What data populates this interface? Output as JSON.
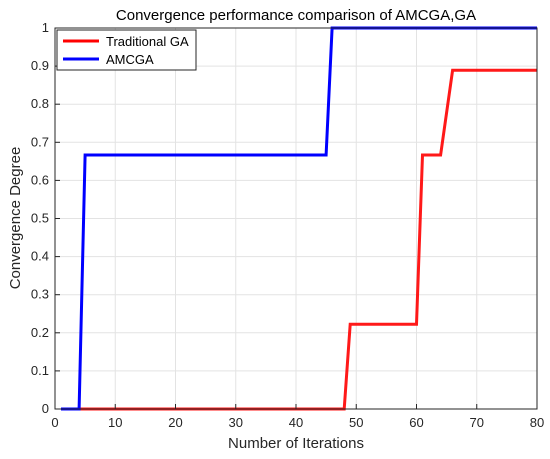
{
  "chart_data": {
    "type": "line",
    "title": "Convergence performance comparison of AMCGA,GA",
    "xlabel": "Number of Iterations",
    "ylabel": "Convergence Degree",
    "xlim": [
      0,
      80
    ],
    "ylim": [
      0,
      1
    ],
    "xticks": [
      0,
      10,
      20,
      30,
      40,
      50,
      60,
      70,
      80
    ],
    "yticks": [
      0,
      0.1,
      0.2,
      0.3,
      0.4,
      0.5,
      0.6,
      0.7,
      0.8,
      0.9,
      1
    ],
    "grid": true,
    "legend_position": "top-left",
    "series": [
      {
        "name": "Traditional GA",
        "color": "#ff0000",
        "x": [
          1,
          48,
          49,
          60,
          61,
          64,
          66,
          80
        ],
        "y": [
          0,
          0,
          0.2222,
          0.2222,
          0.6667,
          0.6667,
          0.8889,
          0.8889
        ]
      },
      {
        "name": "AMCGA",
        "color": "#0000ff",
        "x": [
          1,
          4,
          5,
          45,
          46,
          80
        ],
        "y": [
          0,
          0,
          0.6667,
          0.6667,
          1,
          1
        ]
      }
    ]
  }
}
